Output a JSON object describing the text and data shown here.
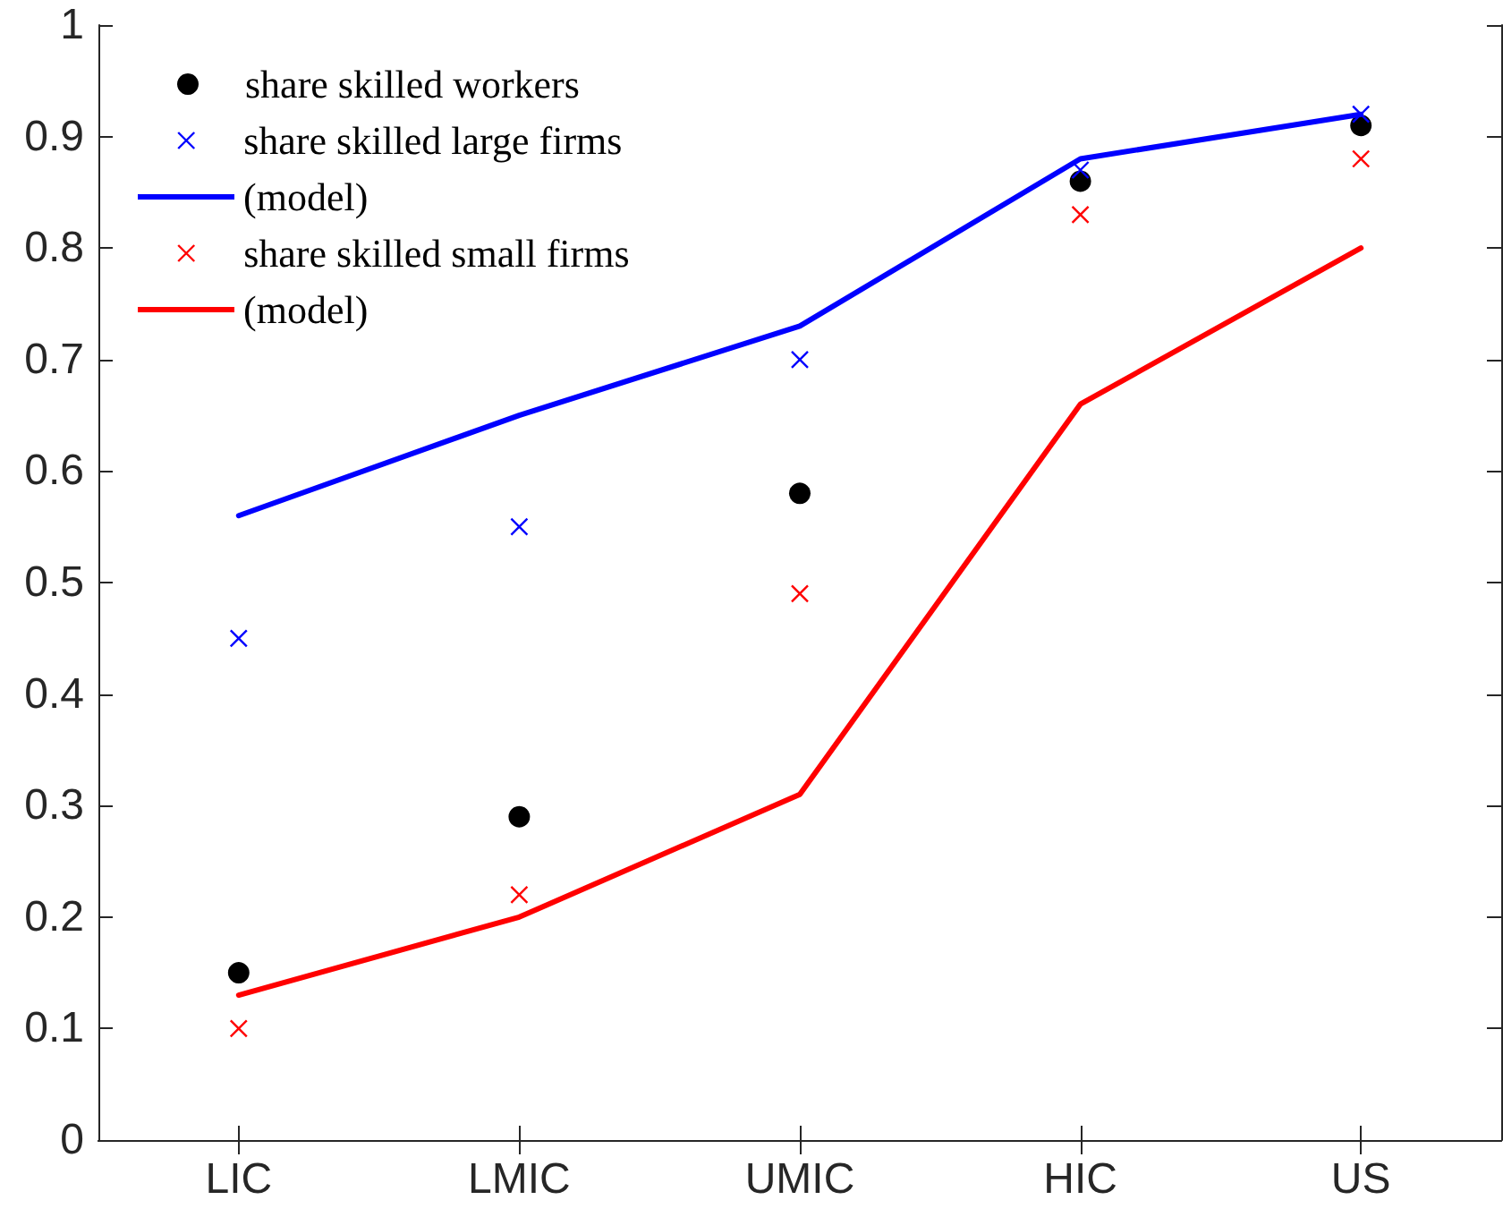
{
  "chart_data": {
    "type": "scatter",
    "categories": [
      "LIC",
      "LMIC",
      "UMIC",
      "HIC",
      "US"
    ],
    "series": [
      {
        "name": "share skilled workers",
        "type": "scatter",
        "marker": "circle",
        "color": "#000000",
        "values": [
          0.15,
          0.29,
          0.58,
          0.86,
          0.91
        ]
      },
      {
        "name": "share skilled large firms",
        "type": "scatter",
        "marker": "cross",
        "color": "#0000ff",
        "values": [
          0.45,
          0.55,
          0.7,
          0.87,
          0.92
        ]
      },
      {
        "name": "(model)",
        "type": "line",
        "marker": "none",
        "line_style": "solid",
        "color": "#0000ff",
        "values": [
          0.56,
          0.65,
          0.73,
          0.88,
          0.92
        ]
      },
      {
        "name": "share skilled small firms",
        "type": "scatter",
        "marker": "cross",
        "color": "#ff0000",
        "values": [
          0.1,
          0.22,
          0.49,
          0.83,
          0.88
        ]
      },
      {
        "name": "(model)",
        "type": "line",
        "marker": "none",
        "line_style": "solid",
        "color": "#ff0000",
        "values": [
          0.13,
          0.2,
          0.31,
          0.66,
          0.8
        ]
      }
    ],
    "ylim": [
      0,
      1
    ],
    "yticks": [
      0,
      0.1,
      0.2,
      0.3,
      0.4,
      0.5,
      0.6,
      0.7,
      0.8,
      0.9,
      1
    ],
    "grid": false,
    "legend": "top left"
  }
}
